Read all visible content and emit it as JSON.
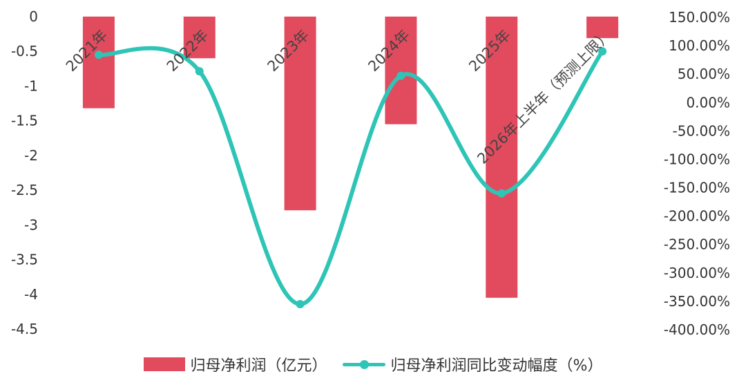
{
  "chart_data": {
    "type": "bar",
    "categories": [
      "2021年",
      "2022年",
      "2023年",
      "2024年",
      "2025年",
      "2026年上半年（预测上限）"
    ],
    "series": [
      {
        "name": "归母净利润（亿元）",
        "type": "bar",
        "axis": "left",
        "color": "#e24a5d",
        "values": [
          -1.32,
          -0.6,
          -2.79,
          -1.55,
          -4.05,
          -0.31
        ]
      },
      {
        "name": "归母净利润同比变动幅度（%）",
        "type": "line",
        "axis": "right",
        "color": "#2ec4b6",
        "values": [
          84,
          55,
          -355,
          47,
          -160,
          90
        ]
      }
    ],
    "y_left": {
      "ylim": [
        -4.5,
        0
      ],
      "ticks": [
        "0",
        "-0.5",
        "-1",
        "-1.5",
        "-2",
        "-2.5",
        "-3",
        "-3.5",
        "-4",
        "-4.5"
      ]
    },
    "y_right": {
      "ylim": [
        -400,
        150
      ],
      "ticks": [
        "150.00%",
        "100.00%",
        "50.00%",
        "0.00%",
        "-50.00%",
        "-100.00%",
        "-150.00%",
        "-200.00%",
        "-250.00%",
        "-300.00%",
        "-350.00%",
        "-400.00%"
      ]
    },
    "legend_position": "bottom",
    "grid": false
  }
}
